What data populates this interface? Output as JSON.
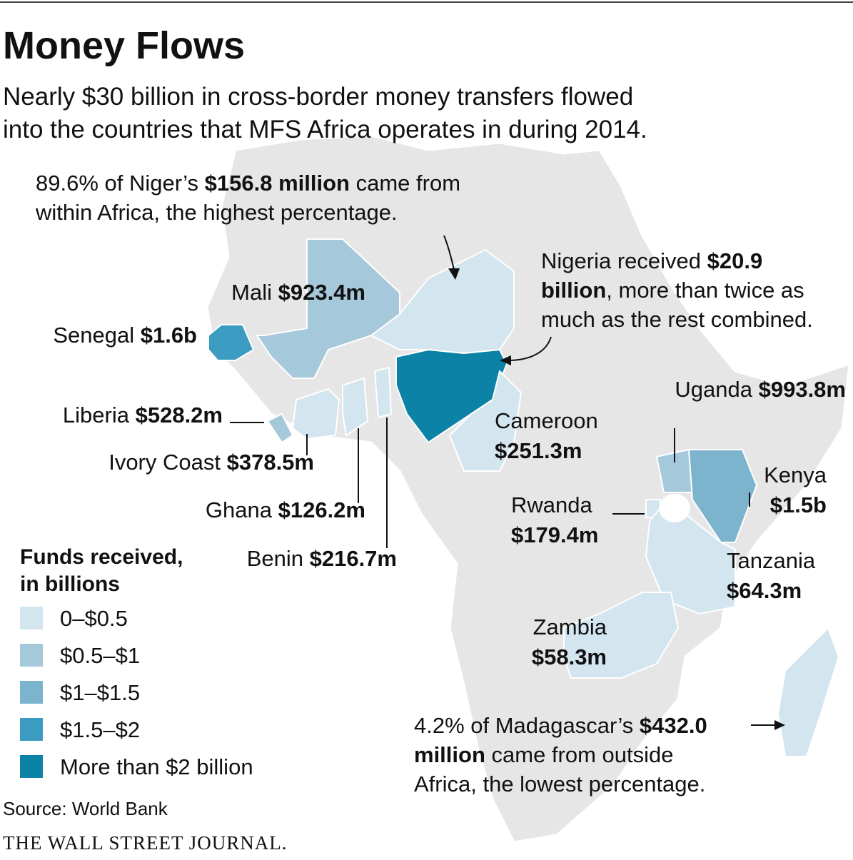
{
  "title": "Money Flows",
  "subtitle": [
    "Nearly $30 billion in cross-border money transfers flowed",
    "into the countries that MFS Africa operates in during 2014."
  ],
  "countries": [
    {
      "name": "Niger",
      "value": null,
      "color": "#d3e5ee"
    },
    {
      "name": "Nigeria",
      "value": null,
      "color": "#0c82a6"
    },
    {
      "name": "Mali",
      "value": "$923.4m",
      "color": "#a5c8da"
    },
    {
      "name": "Senegal",
      "value": "$1.6b",
      "color": "#3b9bc0"
    },
    {
      "name": "Liberia",
      "value": "$528.2m",
      "color": "#a5c8da"
    },
    {
      "name": "Ivory Coast",
      "value": "$378.5m",
      "color": "#d3e5ee"
    },
    {
      "name": "Ghana",
      "value": "$126.2m",
      "color": "#d3e5ee"
    },
    {
      "name": "Benin",
      "value": "$216.7m",
      "color": "#d3e5ee"
    },
    {
      "name": "Cameroon",
      "value": "$251.3m",
      "color": "#d3e5ee"
    },
    {
      "name": "Uganda",
      "value": "$993.8m",
      "color": "#a5c8da"
    },
    {
      "name": "Kenya",
      "value": "$1.5b",
      "color": "#7cb4ce"
    },
    {
      "name": "Rwanda",
      "value": "$179.4m",
      "color": "#d3e5ee"
    },
    {
      "name": "Tanzania",
      "value": "$64.3m",
      "color": "#d3e5ee"
    },
    {
      "name": "Zambia",
      "value": "$58.3m",
      "color": "#d3e5ee"
    },
    {
      "name": null,
      "value": null,
      "color": "#d3e5ee"
    }
  ],
  "annotations": [
    {
      "lines": [
        [
          {
            "text": "89.6% of Niger’s ",
            "bold": false
          },
          {
            "text": "$156.8 million",
            "bold": true
          },
          {
            "text": " came from",
            "bold": false
          }
        ],
        [
          {
            "text": "within Africa, the highest percentage.",
            "bold": false
          }
        ]
      ]
    },
    {
      "lines": [
        [
          {
            "text": "Nigeria received ",
            "bold": false
          },
          {
            "text": "$20.9",
            "bold": true
          }
        ],
        [
          {
            "text": "billion",
            "bold": true
          },
          {
            "text": ", more than twice as",
            "bold": false
          }
        ],
        [
          {
            "text": "much as the rest combined.",
            "bold": false
          }
        ]
      ]
    },
    {
      "lines": [
        [
          {
            "text": "4.2% of Madagascar’s ",
            "bold": false
          },
          {
            "text": "$432.0",
            "bold": true
          }
        ],
        [
          {
            "text": "million",
            "bold": true
          },
          {
            "text": " came from outside",
            "bold": false
          }
        ],
        [
          {
            "text": "Africa, the lowest percentage.",
            "bold": false
          }
        ]
      ]
    }
  ],
  "legend": {
    "title": [
      "Funds received,",
      "in billions"
    ],
    "items": [
      {
        "label": "0–$0.5",
        "color": "#d3e5ee"
      },
      {
        "label": "$0.5–$1",
        "color": "#a5c8da"
      },
      {
        "label": "$1–$1.5",
        "color": "#7cb4ce"
      },
      {
        "label": "$1.5–$2",
        "color": "#3b9bc0"
      },
      {
        "label": "More than $2 billion",
        "color": "#0c82a6"
      }
    ]
  },
  "source": "Source: World Bank",
  "publisher": "THE WALL STREET JOURNAL."
}
